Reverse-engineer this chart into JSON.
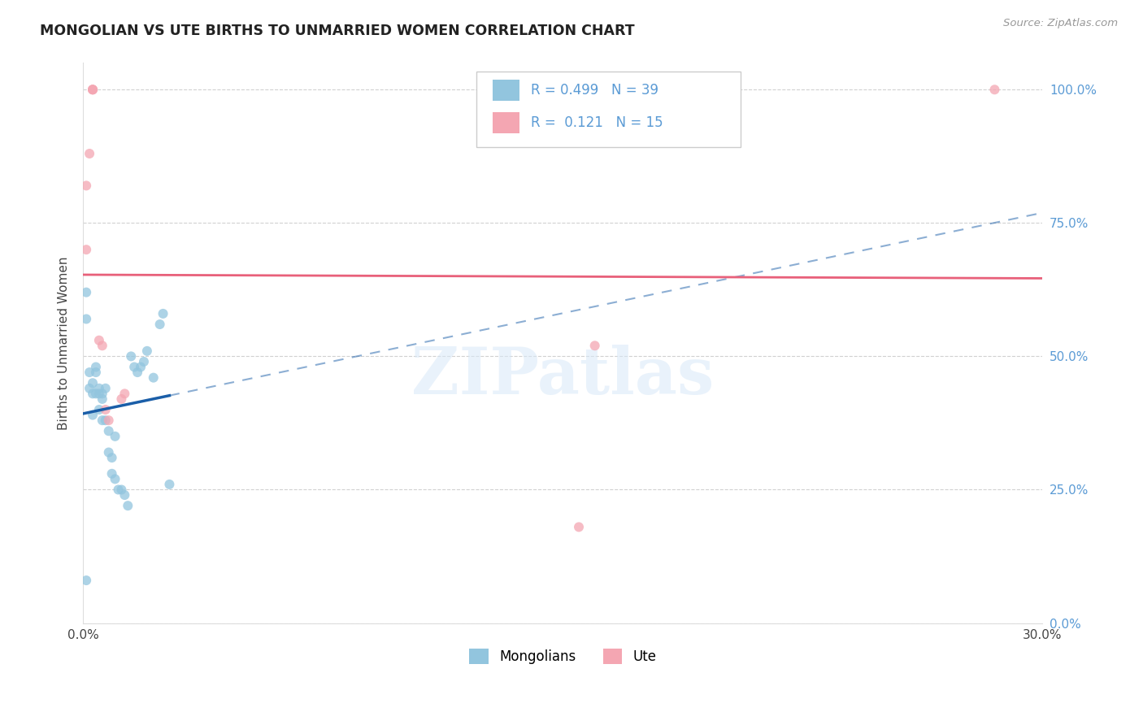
{
  "title": "MONGOLIAN VS UTE BIRTHS TO UNMARRIED WOMEN CORRELATION CHART",
  "source": "Source: ZipAtlas.com",
  "ylabel": "Births to Unmarried Women",
  "xmin": 0.0,
  "xmax": 0.3,
  "ymin": 0.0,
  "ymax": 1.05,
  "ytick_labels": [
    "0.0%",
    "25.0%",
    "50.0%",
    "75.0%",
    "100.0%"
  ],
  "ytick_vals": [
    0.0,
    0.25,
    0.5,
    0.75,
    1.0
  ],
  "xtick_vals": [
    0.0,
    0.06,
    0.12,
    0.18,
    0.24,
    0.3
  ],
  "xtick_labels": [
    "0.0%",
    "",
    "",
    "",
    "",
    "30.0%"
  ],
  "r_mongolian": "0.499",
  "n_mongolian": "39",
  "r_ute": "0.121",
  "n_ute": "15",
  "mongolian_color": "#92C5DE",
  "ute_color": "#F4A6B2",
  "trendline_mongolian_color": "#1A5EA8",
  "trendline_ute_color": "#E8607A",
  "mongolian_x": [
    0.001,
    0.001,
    0.001,
    0.002,
    0.002,
    0.003,
    0.003,
    0.003,
    0.004,
    0.004,
    0.004,
    0.005,
    0.005,
    0.005,
    0.006,
    0.006,
    0.006,
    0.007,
    0.007,
    0.008,
    0.008,
    0.009,
    0.009,
    0.01,
    0.01,
    0.011,
    0.012,
    0.013,
    0.014,
    0.015,
    0.016,
    0.017,
    0.018,
    0.019,
    0.02,
    0.022,
    0.024,
    0.025,
    0.027
  ],
  "mongolian_y": [
    0.62,
    0.57,
    0.08,
    0.47,
    0.44,
    0.45,
    0.43,
    0.39,
    0.48,
    0.47,
    0.43,
    0.44,
    0.43,
    0.4,
    0.43,
    0.42,
    0.38,
    0.44,
    0.38,
    0.36,
    0.32,
    0.31,
    0.28,
    0.35,
    0.27,
    0.25,
    0.25,
    0.24,
    0.22,
    0.5,
    0.48,
    0.47,
    0.48,
    0.49,
    0.51,
    0.46,
    0.56,
    0.58,
    0.26
  ],
  "ute_x": [
    0.001,
    0.001,
    0.002,
    0.003,
    0.003,
    0.003,
    0.005,
    0.006,
    0.007,
    0.008,
    0.012,
    0.013,
    0.155,
    0.16,
    0.285
  ],
  "ute_y": [
    0.82,
    0.7,
    0.88,
    1.0,
    1.0,
    1.0,
    0.53,
    0.52,
    0.4,
    0.38,
    0.42,
    0.43,
    0.18,
    0.52,
    1.0
  ],
  "background_color": "#FFFFFF",
  "grid_color": "#CCCCCC",
  "watermark_text": "ZIPatlas",
  "marker_size": 75
}
